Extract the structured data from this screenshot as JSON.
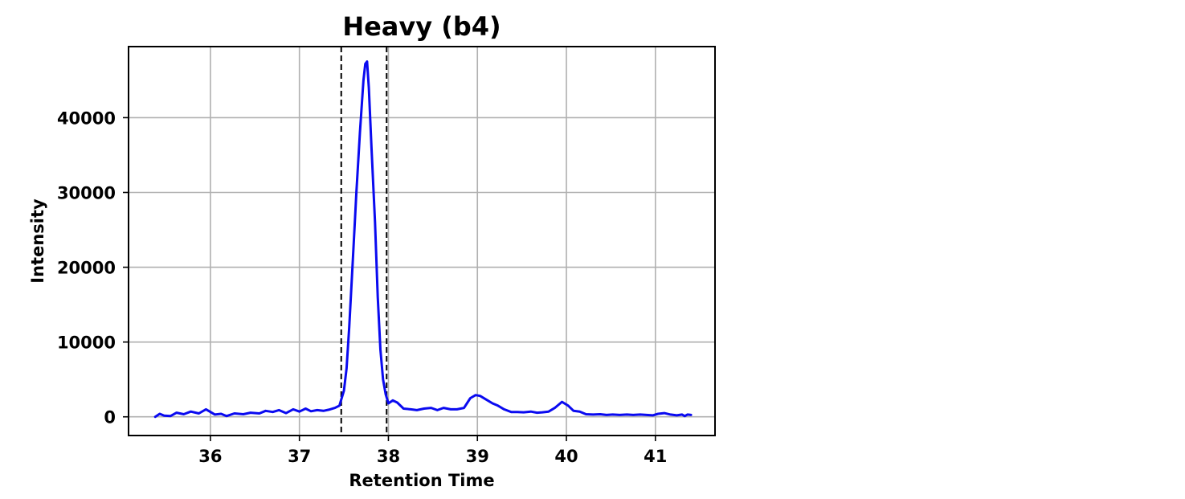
{
  "chart_data": {
    "type": "line",
    "title": "Heavy (b4)",
    "xlabel": "Retention Time",
    "ylabel": "Intensity",
    "xlim": [
      35.08,
      41.67
    ],
    "ylim": [
      -2500,
      49500
    ],
    "grid": true,
    "x_ticks": [
      {
        "value": 36,
        "label": "36"
      },
      {
        "value": 37,
        "label": "37"
      },
      {
        "value": 38,
        "label": "38"
      },
      {
        "value": 39,
        "label": "39"
      },
      {
        "value": 40,
        "label": "40"
      },
      {
        "value": 41,
        "label": "41"
      }
    ],
    "y_ticks": [
      {
        "value": 0,
        "label": "0"
      },
      {
        "value": 10000,
        "label": "10000"
      },
      {
        "value": 20000,
        "label": "20000"
      },
      {
        "value": 30000,
        "label": "30000"
      },
      {
        "value": 40000,
        "label": "40000"
      }
    ],
    "vlines": [
      37.47,
      37.98
    ],
    "series": [
      {
        "color": "#0a0af0",
        "x": [
          35.38,
          35.43,
          35.48,
          35.55,
          35.62,
          35.7,
          35.78,
          35.87,
          35.95,
          36.05,
          36.12,
          36.18,
          36.27,
          36.37,
          36.45,
          36.55,
          36.62,
          36.7,
          36.77,
          36.85,
          36.93,
          37.0,
          37.07,
          37.13,
          37.2,
          37.27,
          37.33,
          37.4,
          37.45,
          37.5,
          37.53,
          37.56,
          37.6,
          37.64,
          37.68,
          37.72,
          37.74,
          37.76,
          37.78,
          37.81,
          37.85,
          37.88,
          37.91,
          37.94,
          37.97,
          38.0,
          38.05,
          38.1,
          38.17,
          38.25,
          38.32,
          38.4,
          38.48,
          38.55,
          38.62,
          38.7,
          38.77,
          38.85,
          38.92,
          38.98,
          39.03,
          39.1,
          39.17,
          39.23,
          39.3,
          39.38,
          39.45,
          39.52,
          39.6,
          39.67,
          39.73,
          39.8,
          39.87,
          39.95,
          40.02,
          40.08,
          40.15,
          40.22,
          40.3,
          40.38,
          40.45,
          40.52,
          40.6,
          40.68,
          40.75,
          40.83,
          40.9,
          40.97,
          41.03,
          41.1,
          41.17,
          41.24,
          41.3,
          41.33,
          41.36,
          41.4
        ],
        "y": [
          0,
          400,
          150,
          100,
          550,
          350,
          700,
          450,
          1000,
          300,
          400,
          100,
          450,
          350,
          550,
          450,
          800,
          650,
          900,
          500,
          1000,
          700,
          1100,
          750,
          900,
          800,
          950,
          1200,
          1500,
          3500,
          6500,
          12000,
          21000,
          30000,
          38000,
          45000,
          47200,
          47500,
          44000,
          36000,
          26000,
          16000,
          9000,
          5000,
          3000,
          1800,
          2200,
          1900,
          1100,
          1000,
          900,
          1100,
          1200,
          900,
          1200,
          1000,
          1000,
          1200,
          2500,
          2900,
          2800,
          2300,
          1800,
          1500,
          1000,
          650,
          650,
          600,
          700,
          550,
          600,
          700,
          1200,
          2000,
          1500,
          800,
          700,
          350,
          300,
          350,
          250,
          300,
          250,
          300,
          250,
          300,
          250,
          200,
          400,
          500,
          300,
          200,
          300,
          100,
          300,
          250
        ]
      }
    ]
  }
}
